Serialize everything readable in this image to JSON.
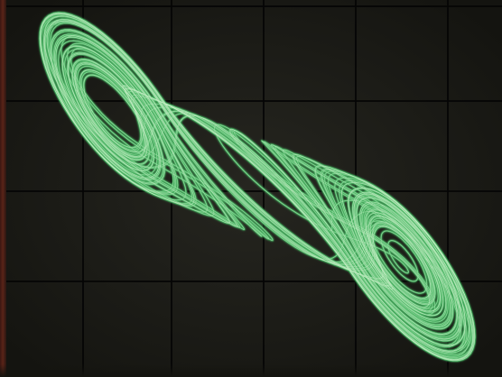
{
  "colors": {
    "screen_background": "#1d1d18",
    "graticule": "#050505",
    "trace": "#4fb867",
    "trace_core": "#c4efc4",
    "bezel_edge": "#4a1f16"
  },
  "display": {
    "subject": "phase-portrait-trace",
    "graticule": "grid"
  }
}
